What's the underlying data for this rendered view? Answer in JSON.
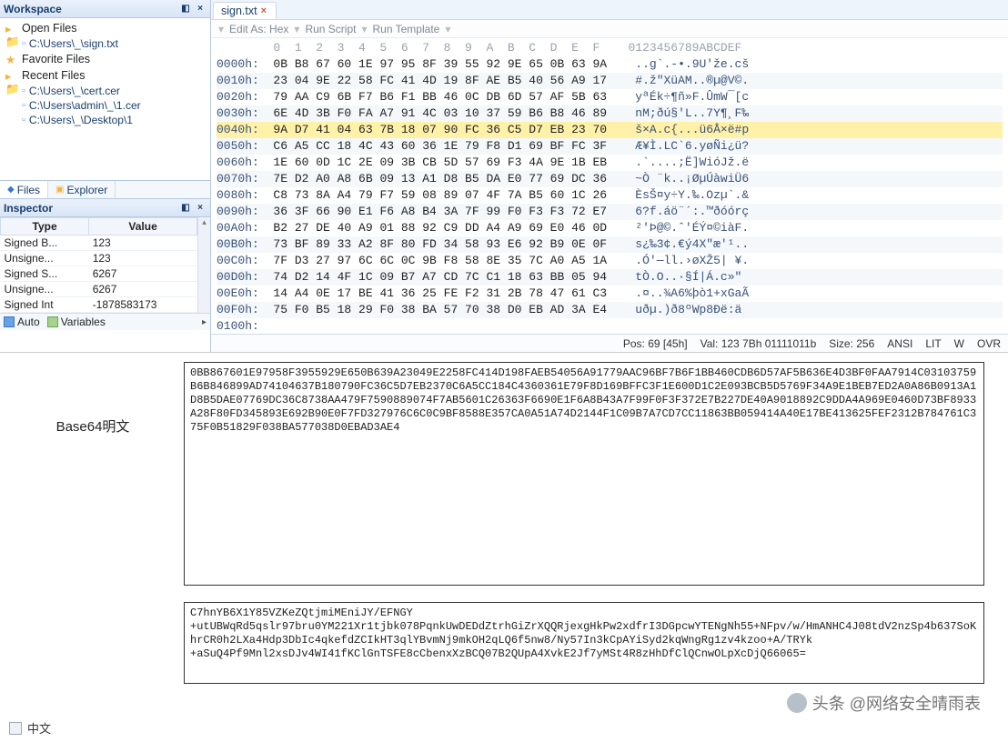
{
  "panes": {
    "workspace_title": "Workspace",
    "inspector_title": "Inspector"
  },
  "tree": {
    "open_files": "Open Files",
    "open_file_1": "C:\\Users\\_\\sign.txt",
    "favorite_files": "Favorite Files",
    "recent_files": "Recent Files",
    "recent_1": "C:\\Users\\_\\cert.cer",
    "recent_2": "C:\\Users\\admin\\_\\1.cer",
    "recent_3": "C:\\Users\\_\\Desktop\\1"
  },
  "left_tabs": {
    "files": "Files",
    "explorer": "Explorer"
  },
  "inspector": {
    "header_type": "Type",
    "header_value": "Value",
    "rows": [
      {
        "type": "Signed B...",
        "value": "123"
      },
      {
        "type": "Unsigne...",
        "value": "123"
      },
      {
        "type": "Signed S...",
        "value": "6267"
      },
      {
        "type": "Unsigne...",
        "value": "6267"
      },
      {
        "type": "Signed Int",
        "value": "-1878583173"
      }
    ],
    "auto_label": "Auto",
    "variables_label": "Variables"
  },
  "tab": {
    "filename": "sign.txt"
  },
  "toolbar": {
    "edit_as": "Edit As: Hex",
    "run_script": "Run Script",
    "run_template": "Run Template",
    "bullet": "▾"
  },
  "hex": {
    "header_cols": "        0  1  2  3  4  5  6  7  8  9  A  B  C  D  E  F    0123456789ABCDEF",
    "rows": [
      {
        "a": "0000h:",
        "h": "0B B8 67 60 1E 97 95 8F 39 55 92 9E 65 0B 63 9A",
        "s": "..g`.-•.9U'že.cš",
        "alt": false
      },
      {
        "a": "0010h:",
        "h": "23 04 9E 22 58 FC 41 4D 19 8F AE B5 40 56 A9 17",
        "s": "#.ž\"XüAM..®µ@V©.",
        "alt": true
      },
      {
        "a": "0020h:",
        "h": "79 AA C9 6B F7 B6 F1 BB 46 0C DB 6D 57 AF 5B 63",
        "s": "yªÉk÷¶ñ»F.ÛmW¯[c",
        "alt": false
      },
      {
        "a": "0030h:",
        "h": "6E 4D 3B F0 FA A7 91 4C 03 10 37 59 B6 B8 46 89",
        "s": "nM;ðú§'L..7Y¶¸F‰",
        "alt": true
      },
      {
        "a": "0040h:",
        "h": "9A D7 41 04 63 7B 18 07 90 FC 36 C5 D7 EB 23 70",
        "s": "š×A.c{...ü6Å×ë#p",
        "hl": true
      },
      {
        "a": "0050h:",
        "h": "C6 A5 CC 18 4C 43 60 36 1E 79 F8 D1 69 BF FC 3F",
        "s": "Æ¥Ì.LC`6.yøÑi¿ü?",
        "alt": true
      },
      {
        "a": "0060h:",
        "h": "1E 60 0D 1C 2E 09 3B CB 5D 57 69 F3 4A 9E 1B EB",
        "s": ".`....;Ë]WióJž.ë",
        "alt": false
      },
      {
        "a": "0070h:",
        "h": "7E D2 A0 A8 6B 09 13 A1 D8 B5 DA E0 77 69 DC 36",
        "s": "~Ò ¨k..¡ØµÚàwiÜ6",
        "alt": true
      },
      {
        "a": "0080h:",
        "h": "C8 73 8A A4 79 F7 59 08 89 07 4F 7A B5 60 1C 26",
        "s": "ÈsŠ¤y÷Y.‰.Ozµ`.&",
        "alt": false
      },
      {
        "a": "0090h:",
        "h": "36 3F 66 90 E1 F6 A8 B4 3A 7F 99 F0 F3 F3 72 E7",
        "s": "6?f.áö¨´:.™ðóórç",
        "alt": true
      },
      {
        "a": "00A0h:",
        "h": "B2 27 DE 40 A9 01 88 92 C9 DD A4 A9 69 E0 46 0D",
        "s": "²'Þ@©.ˆ'ÉÝ¤©iàF.",
        "alt": false
      },
      {
        "a": "00B0h:",
        "h": "73 BF 89 33 A2 8F 80 FD 34 58 93 E6 92 B9 0E 0F",
        "s": "s¿‰3¢.€ý4X\"æ'¹..",
        "alt": true
      },
      {
        "a": "00C0h:",
        "h": "7F D3 27 97 6C 6C 0C 9B F8 58 8E 35 7C A0 A5 1A",
        "s": ".Ó'—ll.›øXŽ5| ¥.",
        "alt": false
      },
      {
        "a": "00D0h:",
        "h": "74 D2 14 4F 1C 09 B7 A7 CD 7C C1 18 63 BB 05 94",
        "s": "tÒ.O..·§Í|Á.c»\"",
        "alt": true
      },
      {
        "a": "00E0h:",
        "h": "14 A4 0E 17 BE 41 36 25 FE F2 31 2B 78 47 61 C3",
        "s": ".¤..¾A6%þò1+xGaÃ",
        "alt": false
      },
      {
        "a": "00F0h:",
        "h": "75 F0 B5 18 29 F0 38 BA 57 70 38 D0 EB AD 3A E4",
        "s": "uðµ.)ð8ºWp8Ðë­:ä",
        "alt": true
      },
      {
        "a": "0100h:",
        "h": "",
        "s": "",
        "alt": false
      }
    ]
  },
  "status": {
    "pos": "Pos: 69 [45h]",
    "val": "Val: 123 7Bh 01111011b",
    "size": "Size: 256",
    "enc": "ANSI",
    "lit": "LIT",
    "w": "W",
    "ovr": "OVR"
  },
  "bottom": {
    "label": "Base64明文",
    "hexdump": "0BB867601E97958F3955929E650B639A23049E2258FC414D198FAEB54056A91779AAC96BF7B6F1BB460CDB6D57AF5B636E4D3BF0FAA7914C03103759B6B846899AD74104637B180790FC36C5D7EB2370C6A5CC184C4360361E79F8D169BFFC3F1E600D1C2E093BCB5D5769F34A9E1BEB7ED2A0A86B0913A1D8B5DAE07769DC36C8738AA479F7590889074F7AB5601C26363F6690E1F6A8B43A7F99F0F3F372E7B227DE40A9018892C9DDA4A969E0460D73BF8933A28F80FD345893E692B90E0F7FD327976C6C0C9BF8588E357CA0A51A74D2144F1C09B7A7CD7CC11863BB059414A40E17BE413625FEF2312B784761C375F0B51829F038BA577038D0EBAD3AE4",
    "base64": "C7hnYB6X1Y85VZKeZQtjmiMEniJY/EFNGY\n+utUBWqRd5qslr97bru0YM221Xr1tjbk078PqnkUwDEDdZtrhGiZrXQQRjexgHkPw2xdfrI3DGpcwYTENgNh55+NFpv/w/HmANHC4J08tdV2nzSp4b637SoKhrCR0h2LXa4Hdp3DbIc4qkefdZCIkHT3qlYBvmNj9mkOH2qLQ6f5nw8/Ny57In3kCpAYiSyd2kqWngRg1zv4kzoo+A/TRYk\n+aSuQ4Pf9Mnl2xsDJv4WI41fKClGnTSFE8cCbenxXzBCQ07B2QUpA4XvkE2Jf7yMSt4R8zHhDfClQCnwOLpXcDjQ66065="
  },
  "watermark": "头条 @网络安全晴雨表",
  "cn_footer": "中文"
}
